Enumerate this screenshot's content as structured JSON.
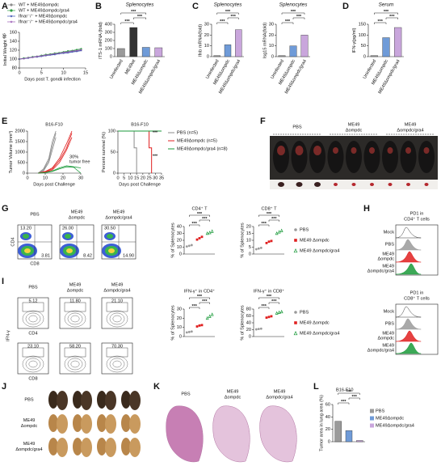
{
  "figure": {
    "panels": [
      {
        "letter": "A",
        "type": "line",
        "annotation": "ns",
        "ylabel": "Initial Weight %",
        "xlabel": "Days post T. gondii infection",
        "x": [
          0,
          1,
          2,
          3,
          4,
          5,
          6,
          7,
          8,
          9,
          10,
          11,
          12,
          13,
          14
        ],
        "xlim": [
          0,
          15
        ],
        "xticks": [
          0,
          5,
          10,
          15
        ],
        "ylim": [
          80,
          160
        ],
        "yticks": [
          80,
          100,
          120,
          140,
          160
        ],
        "series": [
          {
            "name": "WT + ME49Δompdc",
            "color": "#8c8c8c",
            "marker": "circle",
            "values": [
              100,
              101,
              103,
              104,
              105,
              107,
              108,
              110,
              111,
              113,
              114,
              116,
              117,
              118,
              120
            ]
          },
          {
            "name": "WT + ME49Δompdc/gra4",
            "color": "#2e9e44",
            "marker": "circle",
            "values": [
              100,
              102,
              103,
              105,
              106,
              108,
              110,
              111,
              113,
              114,
              116,
              118,
              119,
              121,
              123
            ]
          },
          {
            "name": "Ifnar⁻/⁻ + ME49Δompdc",
            "color": "#3a4fb0",
            "marker": "star",
            "values": [
              100,
              101,
              102,
              104,
              105,
              106,
              108,
              109,
              110,
              112,
              113,
              114,
              116,
              117,
              119
            ]
          },
          {
            "name": "Ifnar⁻/⁻ + ME49Δompdc/gra4",
            "color": "#9b5bb5",
            "marker": "star",
            "values": [
              100,
              101,
              103,
              104,
              106,
              107,
              109,
              110,
              112,
              113,
              115,
              116,
              118,
              119,
              121
            ]
          }
        ]
      },
      {
        "letter": "B",
        "type": "bar",
        "title": "Splenocytes",
        "ylabel": "ITS-1 mRNA (fold)",
        "categories": [
          "Uninfected",
          "ME49wt",
          "ME49Δompdc",
          "ME49Δompdc/gra4"
        ],
        "values": [
          100,
          360,
          115,
          110
        ],
        "colors": [
          "#9a9a9a",
          "#333333",
          "#6f9bd8",
          "#c9a6dc"
        ],
        "ylim": [
          0,
          400
        ],
        "yticks": [
          0,
          100,
          200,
          300,
          400
        ],
        "significance": [
          "***",
          "***",
          "***"
        ]
      },
      {
        "letter": "C",
        "type": "bar",
        "title": "Splenocytes",
        "ylabel": "Ifnb mRNA(fold)",
        "categories": [
          "Uninfected",
          "ME49Δompdc",
          "ME49Δompdc/gra4"
        ],
        "values": [
          1,
          11,
          25
        ],
        "colors": [
          "#9a9a9a",
          "#6f9bd8",
          "#c9a6dc"
        ],
        "ylim": [
          0,
          30
        ],
        "yticks": [
          0,
          10,
          20,
          30
        ],
        "significance": [
          "***",
          "***",
          "***"
        ]
      },
      {
        "type": "bar",
        "title": "Splenocytes",
        "ylabel": "Isg15 mRNA(fold)",
        "categories": [
          "Uninfected",
          "ME49Δompdc",
          "ME49Δompdc/gra4"
        ],
        "values": [
          1,
          10,
          20
        ],
        "colors": [
          "#9a9a9a",
          "#6f9bd8",
          "#c9a6dc"
        ],
        "ylim": [
          0,
          30
        ],
        "yticks": [
          0,
          10,
          20,
          30
        ],
        "significance": [
          "***",
          "***",
          "***"
        ]
      },
      {
        "letter": "D",
        "type": "bar",
        "title": "Serum",
        "ylabel": "IFN-γ(pg/ml)",
        "categories": [
          "Uninfected",
          "ME49Δompdc",
          "ME49Δompdc/gra4"
        ],
        "values": [
          5,
          88,
          135
        ],
        "colors": [
          "#9a9a9a",
          "#6f9bd8",
          "#c9a6dc"
        ],
        "ylim": [
          0,
          150
        ],
        "yticks": [
          0,
          50,
          100,
          150
        ],
        "significance": [
          "***",
          "***",
          "***"
        ]
      },
      {
        "letter": "E",
        "type": "growth",
        "title": "B16-F10",
        "ylabel": "Tumor Volume (mm³)",
        "xlabel": "Days post Challenge",
        "annotation": [
          "30%",
          "tumor free"
        ],
        "xlim": [
          0,
          30
        ],
        "xticks": [
          0,
          10,
          20,
          30
        ],
        "ylim": [
          0,
          2000
        ],
        "yticks": [
          0,
          500,
          1000,
          1500,
          2000
        ],
        "series": [
          {
            "color": "#8c8c8c",
            "x": [
              6,
              9,
              12,
              14,
              16
            ],
            "values": [
              0,
              150,
              600,
              1300,
              1900
            ]
          },
          {
            "color": "#8c8c8c",
            "x": [
              6,
              9,
              12,
              14,
              16
            ],
            "values": [
              0,
              200,
              700,
              1500,
              2000
            ]
          },
          {
            "color": "#8c8c8c",
            "x": [
              6,
              9,
              12,
              14,
              16
            ],
            "values": [
              0,
              100,
              500,
              1100,
              1700
            ]
          },
          {
            "color": "#e02020",
            "x": [
              6,
              10,
              14,
              18,
              22,
              25
            ],
            "values": [
              0,
              60,
              200,
              600,
              1200,
              1900
            ]
          },
          {
            "color": "#e02020",
            "x": [
              6,
              10,
              14,
              18,
              22,
              25
            ],
            "values": [
              0,
              40,
              150,
              500,
              1100,
              1700
            ]
          },
          {
            "color": "#e02020",
            "x": [
              6,
              10,
              14,
              18,
              22,
              25
            ],
            "values": [
              0,
              80,
              250,
              700,
              1400,
              2000
            ]
          },
          {
            "color": "#1a9a3a",
            "x": [
              6,
              10,
              14,
              18,
              22,
              26,
              30
            ],
            "values": [
              0,
              30,
              100,
              250,
              350,
              300,
              250
            ]
          },
          {
            "color": "#1a9a3a",
            "x": [
              6,
              10,
              14,
              18,
              22,
              26,
              30
            ],
            "values": [
              0,
              20,
              80,
              200,
              300,
              280,
              0
            ]
          }
        ]
      },
      {
        "type": "survival",
        "title": "B16-F10",
        "ylabel": "Percent survival (%)",
        "xlabel": "Days post Challenge",
        "xlim": [
          0,
          35
        ],
        "xticks": [
          0,
          5,
          10,
          15,
          20,
          25,
          30,
          35
        ],
        "ylim": [
          0,
          100
        ],
        "yticks": [
          0,
          50,
          100
        ],
        "significance": [
          "***",
          "***"
        ],
        "series": [
          {
            "name": "PBS (n=5)",
            "color": "#8c8c8c",
            "x": [
              0,
              13,
              13,
              15,
              15
            ],
            "values": [
              100,
              100,
              60,
              60,
              0
            ]
          },
          {
            "name": "ME49Δompdc (n=5)",
            "color": "#e02020",
            "x": [
              0,
              25,
              25,
              27,
              27
            ],
            "values": [
              100,
              100,
              60,
              60,
              0
            ]
          },
          {
            "name": "ME49Δompdc/gra4 (n=8)",
            "color": "#1a9a3a",
            "x": [
              0,
              35
            ],
            "values": [
              100,
              100
            ]
          }
        ]
      },
      {
        "letter": "F",
        "type": "photo",
        "groups": [
          [
            "PBS"
          ],
          [
            "ME49",
            "Δompdc"
          ],
          [
            "ME49",
            "Δompdc/gra4"
          ]
        ]
      },
      {
        "letter": "G",
        "type": "flow",
        "style": "color",
        "columns": [
          [
            "PBS"
          ],
          [
            "ME49",
            "Δompdc"
          ],
          [
            "ME49",
            "Δompdc/gra4"
          ]
        ],
        "rows": [
          {
            "ylabel": "CD4",
            "xlabel": "CD8",
            "upper": [
              "13.20",
              "26.00",
              "30.50"
            ],
            "lower": [
              "3.81",
              "8.42",
              "14.90"
            ]
          }
        ]
      },
      {
        "type": "dot",
        "title": "CD4⁺ T",
        "ylabel": "% of Splenocytes",
        "ylim": [
          0,
          40
        ],
        "yticks": [
          0,
          10,
          20,
          30,
          40
        ],
        "significance": [
          "***",
          "***",
          "***"
        ],
        "series": [
          {
            "color": "#9a9a9a",
            "marker": "circle",
            "values": [
              11,
              12,
              13
            ]
          },
          {
            "color": "#e02020",
            "marker": "square",
            "values": [
              21,
              23,
              25
            ]
          },
          {
            "color": "#1a9a3a",
            "marker": "triangle",
            "values": [
              30,
              31,
              33
            ]
          }
        ]
      },
      {
        "type": "dot",
        "title": "CD8⁺ T",
        "ylabel": "% of Splenocytes",
        "ylim": [
          0,
          20
        ],
        "yticks": [
          0,
          5,
          10,
          15,
          20
        ],
        "significance": [
          "***",
          "***",
          "***"
        ],
        "series": [
          {
            "name": "PBS",
            "color": "#9a9a9a",
            "marker": "circle",
            "values": [
              3.5,
              4,
              4.5
            ]
          },
          {
            "name": "ME49 Δompdc",
            "color": "#e02020",
            "marker": "square",
            "values": [
              8,
              9,
              9.5
            ]
          },
          {
            "name": "ME49 Δompdc/gra4",
            "color": "#1a9a3a",
            "marker": "triangle",
            "values": [
              15,
              16,
              17
            ]
          }
        ]
      },
      {
        "letter": "H",
        "type": "histogram",
        "blocks": [
          {
            "title": [
              "PD1 in",
              "CD4⁺ T cells"
            ],
            "labels": [
              {
                "text": [
                  "Mock"
                ],
                "color": "#333333"
              },
              {
                "text": [
                  "PBS"
                ],
                "color": "#9a9a9a"
              },
              {
                "text": [
                  "ME49",
                  "Δompdc"
                ],
                "color": "#e02020"
              },
              {
                "text": [
                  "ME49",
                  "Δompdc/gra4"
                ],
                "color": "#1a9a3a"
              }
            ]
          },
          {
            "title": [
              "PD1 in",
              "CD8⁺ T cells"
            ],
            "labels": [
              {
                "text": [
                  "Mock"
                ],
                "color": "#333333"
              },
              {
                "text": [
                  "PBS"
                ],
                "color": "#9a9a9a"
              },
              {
                "text": [
                  "ME49",
                  "Δompdc"
                ],
                "color": "#e02020"
              },
              {
                "text": [
                  "ME49",
                  "Δompdc/gra4"
                ],
                "color": "#1a9a3a"
              }
            ]
          }
        ]
      },
      {
        "letter": "I",
        "type": "flow",
        "style": "contour",
        "ylabel": "IFN-γ",
        "columns": [
          [
            "PBS"
          ],
          [
            "ME49",
            "Δompdc"
          ],
          [
            "ME49",
            "Δompdc/gra4"
          ]
        ],
        "rows": [
          {
            "xlabel": "CD4",
            "upper": [
              "5.12",
              "11.80",
              "21.10"
            ]
          },
          {
            "xlabel": "CD8",
            "upper": [
              "23.10",
              "58.20",
              "70.30"
            ]
          }
        ]
      },
      {
        "type": "dot",
        "title": "IFN-γ⁺ in CD4⁺",
        "ylabel": "% of Splenocytes",
        "ylim": [
          0,
          30
        ],
        "yticks": [
          0,
          10,
          20,
          30
        ],
        "significance": [
          "***",
          "***",
          "***"
        ],
        "series": [
          {
            "color": "#9a9a9a",
            "marker": "circle",
            "values": [
              4.5,
              5,
              5.5
            ]
          },
          {
            "color": "#e02020",
            "marker": "square",
            "values": [
              11,
              12,
              12.5
            ]
          },
          {
            "color": "#1a9a3a",
            "marker": "triangle",
            "values": [
              20,
              22,
              24
            ]
          }
        ]
      },
      {
        "type": "dot",
        "title": "IFN-γ⁺ in CD8⁺",
        "ylabel": "% of Splenocytes",
        "ylim": [
          0,
          80
        ],
        "yticks": [
          0,
          20,
          40,
          60,
          80
        ],
        "significance": [
          "***",
          "***",
          "***"
        ],
        "series": [
          {
            "name": "PBS",
            "color": "#9a9a9a",
            "marker": "circle",
            "values": [
              21,
              22,
              23
            ]
          },
          {
            "name": "ME49 Δompdc",
            "color": "#e02020",
            "marker": "square",
            "values": [
              55,
              57,
              59
            ]
          },
          {
            "name": "ME49 Δompdc/gra4",
            "color": "#1a9a3a",
            "marker": "triangle",
            "values": [
              68,
              70,
              72
            ]
          }
        ]
      },
      {
        "letter": "J",
        "type": "lungs",
        "rows": [
          [
            "PBS"
          ],
          [
            "ME49",
            "Δompdc"
          ],
          [
            "ME49",
            "Δompdc/gra4"
          ]
        ]
      },
      {
        "letter": "K",
        "type": "histology",
        "columns": [
          [
            "PBS"
          ],
          [
            "ME49",
            "Δompdc"
          ],
          [
            "ME49",
            "Δompdc/gra4"
          ]
        ]
      },
      {
        "letter": "L",
        "type": "legendbar",
        "title": "B16-F10",
        "ylabel": "Tumor area in lung area (%)",
        "ylim": [
          0,
          60
        ],
        "yticks": [
          0,
          20,
          40,
          60
        ],
        "significance": [
          "***",
          "***",
          "***"
        ],
        "series": [
          {
            "name": "PBS",
            "color": "#9a9a9a",
            "value": 33
          },
          {
            "name": "ME49Δompdc",
            "color": "#6f9bd8",
            "value": 18
          },
          {
            "name": "ME49Δompdc/gra4",
            "color": "#c9a6dc",
            "value": 2
          }
        ]
      }
    ]
  }
}
